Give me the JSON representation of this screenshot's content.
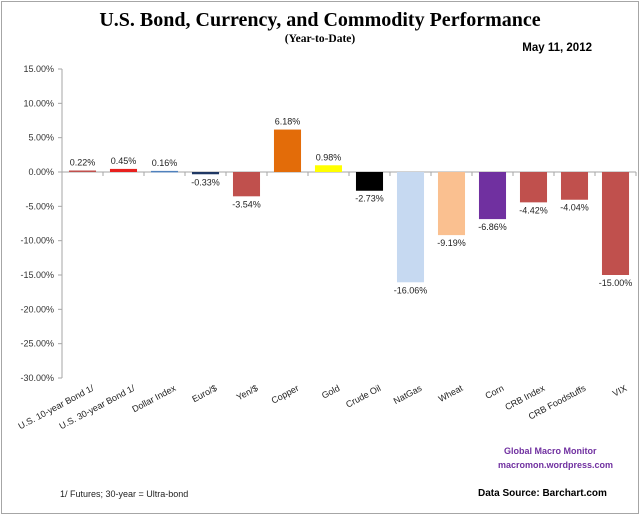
{
  "chart_data": {
    "type": "bar",
    "title": "U.S. Bond, Currency, and Commodity Performance",
    "subtitle": "(Year-to-Date)",
    "date": "May 11, 2012",
    "xlabel": "",
    "ylabel": "",
    "ylim": [
      -30,
      15
    ],
    "ytick_step": 5,
    "yticks": [
      "15.00%",
      "10.00%",
      "5.00%",
      "0.00%",
      "-5.00%",
      "-10.00%",
      "-15.00%",
      "-20.00%",
      "-25.00%",
      "-30.00%"
    ],
    "grid": false,
    "legend": "none",
    "categories": [
      "U.S. 10-year Bond 1/",
      "U.S. 30-year Bond 1/",
      "Dollar Index",
      "Euro/$",
      "Yen/$",
      "Copper",
      "Gold",
      "Crude Oil",
      "NatGas",
      "Wheat",
      "Corn",
      "CRB Index",
      "CRB Foodstuffs",
      "VIX"
    ],
    "values": [
      0.22,
      0.45,
      0.16,
      -0.33,
      -3.54,
      6.18,
      0.98,
      -2.73,
      -16.06,
      -9.19,
      -6.86,
      -4.42,
      -4.04,
      -15.0
    ],
    "data_labels": [
      "0.22%",
      "0.45%",
      "0.16%",
      "-0.33%",
      "-3.54%",
      "6.18%",
      "0.98%",
      "-2.73%",
      "-16.06%",
      "-9.19%",
      "-6.86%",
      "-4.42%",
      "-4.04%",
      "-15.00%"
    ],
    "colors": [
      "#c0504d",
      "#e8201e",
      "#4f81bd",
      "#1f3864",
      "#c0504d",
      "#e36c09",
      "#ffff00",
      "#000000",
      "#c6d9f1",
      "#fac090",
      "#7030a0",
      "#c0504d",
      "#c0504d",
      "#c0504d"
    ],
    "unit": "%"
  },
  "credits": {
    "line1": "Global Macro Monitor",
    "line2": "macromon.wordpress.com"
  },
  "footnote": "1/  Futures; 30-year = Ultra-bond",
  "source": "Data Source:  Barchart.com"
}
